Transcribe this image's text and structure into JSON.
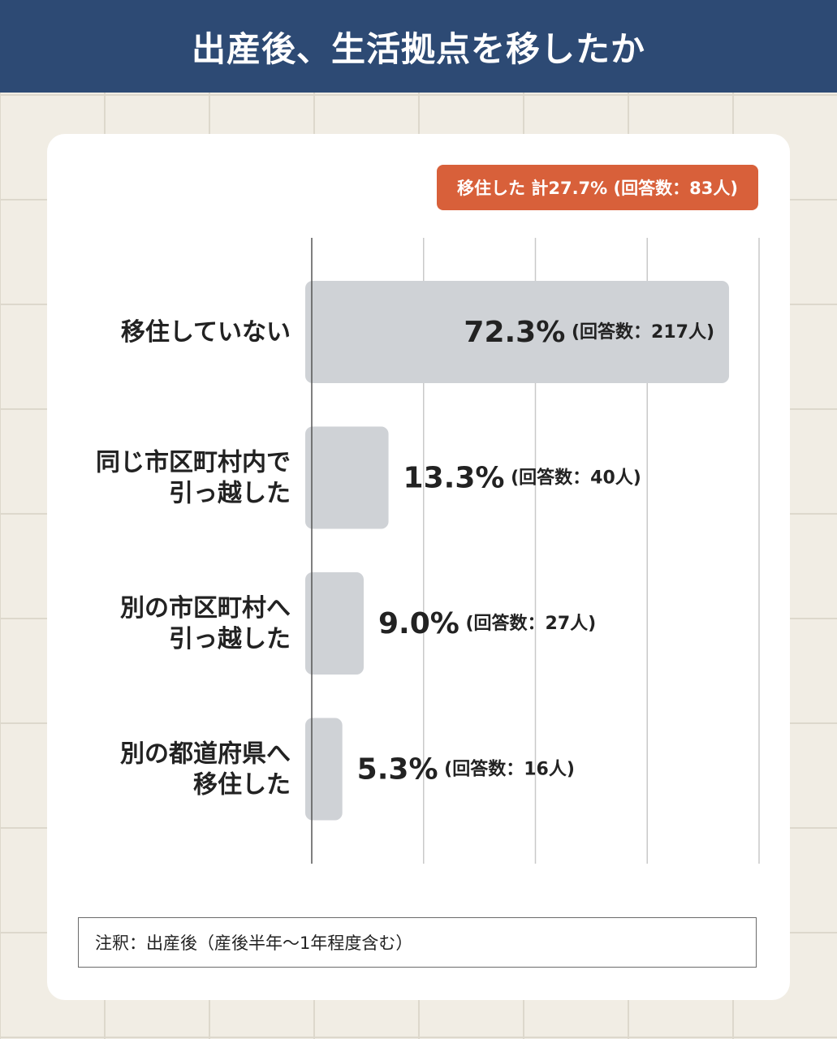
{
  "header": {
    "title": "出産後、生活拠点を移したか"
  },
  "badge": {
    "text": "移住した 計27.7% (回答数：83人)"
  },
  "note": {
    "text": "注釈：出産後（産後半年〜1年程度含む）"
  },
  "chart_data": {
    "type": "bar",
    "orientation": "horizontal",
    "categories": [
      [
        "移住していない"
      ],
      [
        "同じ市区町村内で",
        "引っ越した"
      ],
      [
        "別の市区町村へ",
        "引っ越した"
      ],
      [
        "別の都道府県へ",
        "移住した"
      ]
    ],
    "values": [
      72.3,
      13.3,
      9.0,
      5.3
    ],
    "value_labels": [
      "72.3%",
      "13.3%",
      "9.0%",
      "5.3%"
    ],
    "count_labels": [
      "(回答数：217人)",
      "(回答数：40人)",
      "(回答数：27人)",
      "(回答数：16人)"
    ],
    "xlim": [
      0,
      77.5
    ],
    "grid": true,
    "colors": {
      "bar": "#cfd2d6",
      "grid": "#c9c9c9",
      "axis": "#555555",
      "text": "#222222",
      "accent": "#d8603a",
      "header": "#2d4a74"
    }
  }
}
